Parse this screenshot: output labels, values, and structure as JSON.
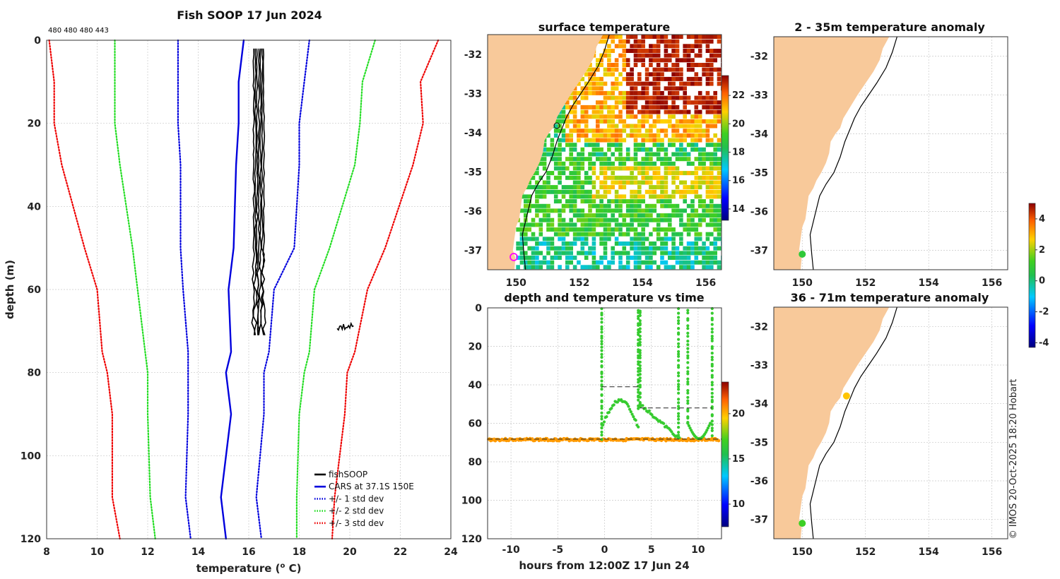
{
  "chart_data": [
    {
      "type": "line",
      "title": "Fish SOOP 17 Jun 2024",
      "header_counts": "480 480 480 443",
      "xlabel": "temperature (",
      "xlabel_sup": "o",
      "xlabel_end": " C)",
      "ylabel": "depth (m)",
      "xlim": [
        8,
        24
      ],
      "ylim": [
        120,
        0
      ],
      "x_ticks": [
        "8",
        "10",
        "12",
        "14",
        "16",
        "18",
        "20",
        "22",
        "24"
      ],
      "y_ticks": [
        "0",
        "20",
        "40",
        "60",
        "80",
        "100",
        "120"
      ],
      "depth": [
        0,
        10,
        20,
        30,
        50,
        60,
        75,
        80,
        90,
        110,
        120
      ],
      "series": [
        {
          "name": "CARS at 37.1S 150E",
          "color": "#0000dd",
          "style": "solid",
          "values": [
            15.8,
            15.6,
            15.6,
            15.5,
            15.4,
            15.2,
            15.3,
            15.1,
            15.3,
            14.9,
            15.1
          ]
        },
        {
          "name": "+/- 1 std dev (low)",
          "color": "#0000dd",
          "style": "dotted",
          "values": [
            13.2,
            13.2,
            13.2,
            13.3,
            13.3,
            13.4,
            13.6,
            13.6,
            13.6,
            13.5,
            13.7
          ]
        },
        {
          "name": "+/- 1 std dev (high)",
          "color": "#0000dd",
          "style": "dotted",
          "values": [
            18.4,
            18.2,
            18.0,
            18.0,
            17.8,
            17.0,
            16.8,
            16.6,
            16.6,
            16.3,
            16.5
          ]
        },
        {
          "name": "+/- 2 std dev (low)",
          "color": "#22dd22",
          "style": "dotted",
          "values": [
            10.7,
            10.7,
            10.7,
            10.9,
            11.4,
            11.6,
            11.9,
            12.0,
            12.0,
            12.1,
            12.3
          ]
        },
        {
          "name": "+/- 2 std dev (high)",
          "color": "#22dd22",
          "style": "dotted",
          "values": [
            21.0,
            20.5,
            20.4,
            20.2,
            19.2,
            18.6,
            18.4,
            18.2,
            18.0,
            17.9,
            17.9
          ]
        },
        {
          "name": "+/- 3 std dev (low)",
          "color": "#ee0000",
          "style": "dotted",
          "values": [
            8.1,
            8.3,
            8.3,
            8.6,
            9.5,
            10.0,
            10.2,
            10.4,
            10.6,
            10.6,
            10.9
          ]
        },
        {
          "name": "+/- 3 std dev (high)",
          "color": "#ee0000",
          "style": "dotted",
          "values": [
            23.5,
            22.8,
            22.9,
            22.5,
            21.4,
            20.7,
            20.2,
            19.9,
            19.8,
            19.4,
            19.3
          ]
        }
      ],
      "legend": [
        {
          "label": "fishSOOP",
          "color": "#000000",
          "style": "solid"
        },
        {
          "label": "CARS at 37.1S 150E",
          "color": "#0000dd",
          "style": "solid"
        },
        {
          "label": "+/- 1 std dev",
          "color": "#0000dd",
          "style": "dotted"
        },
        {
          "label": "+/- 2 std dev",
          "color": "#22dd22",
          "style": "dotted"
        },
        {
          "label": "+/- 3 std dev",
          "color": "#ee0000",
          "style": "dotted"
        }
      ],
      "legend_position": "bottom-right",
      "fishsoop_profiles_temp_range": [
        16.2,
        16.6
      ],
      "fishsoop_profiles_depth_range": [
        2,
        71
      ],
      "fishsoop_warm_cluster": {
        "temp_range": [
          19.5,
          20.2
        ],
        "depth_range": [
          68,
          70
        ]
      }
    },
    {
      "type": "heatmap",
      "title": "surface temperature",
      "x_ticks": [
        "150",
        "152",
        "154",
        "156"
      ],
      "y_ticks": [
        "-32",
        "-33",
        "-34",
        "-35",
        "-36",
        "-37"
      ],
      "xlim": [
        149.1,
        156.5
      ],
      "ylim": [
        -37.5,
        -31.5
      ],
      "colorbar_ticks": [
        "14",
        "16",
        "18",
        "20",
        "22"
      ],
      "colorbar_range": [
        13.2,
        23.4
      ]
    },
    {
      "type": "scatter",
      "title": "depth and temperature vs time",
      "xlabel": "hours from 12:00Z 17 Jun 24",
      "x_ticks": [
        "-10",
        "-5",
        "0",
        "5",
        "10"
      ],
      "y_ticks": [
        "0",
        "20",
        "40",
        "60",
        "80",
        "100",
        "120"
      ],
      "xlim": [
        -12.5,
        12.5
      ],
      "ylim": [
        120,
        0
      ],
      "colorbar_ticks": [
        "10",
        "15",
        "20"
      ],
      "colorbar_range": [
        7.5,
        23.5
      ]
    },
    {
      "type": "scatter",
      "title": "2 - 35m temperature anomaly",
      "x_ticks": [
        "150",
        "152",
        "154",
        "156"
      ],
      "y_ticks": [
        "-32",
        "-33",
        "-34",
        "-35",
        "-36",
        "-37"
      ],
      "xlim": [
        149.1,
        156.5
      ],
      "ylim": [
        -37.5,
        -31.5
      ],
      "points": [
        {
          "lon": 150.0,
          "lat": -37.1,
          "anomaly": 0.8
        }
      ]
    },
    {
      "type": "scatter",
      "title": "36 - 71m temperature anomaly",
      "x_ticks": [
        "150",
        "152",
        "154",
        "156"
      ],
      "y_ticks": [
        "-32",
        "-33",
        "-34",
        "-35",
        "-36",
        "-37"
      ],
      "xlim": [
        149.1,
        156.5
      ],
      "ylim": [
        -37.5,
        -31.5
      ],
      "points": [
        {
          "lon": 150.0,
          "lat": -37.1,
          "anomaly": 1.2
        },
        {
          "lon": 151.4,
          "lat": -33.8,
          "anomaly": 2.8
        }
      ],
      "colorbar_ticks": [
        "4",
        "2",
        "0",
        "-2",
        "-4"
      ],
      "colorbar_range": [
        -4.3,
        5.0
      ]
    }
  ],
  "footer_credit": "© IMOS 20-Oct-2025 18:20 Hobart",
  "colors": {
    "land": "#f8c99a",
    "grid": "#c8c8c8"
  }
}
